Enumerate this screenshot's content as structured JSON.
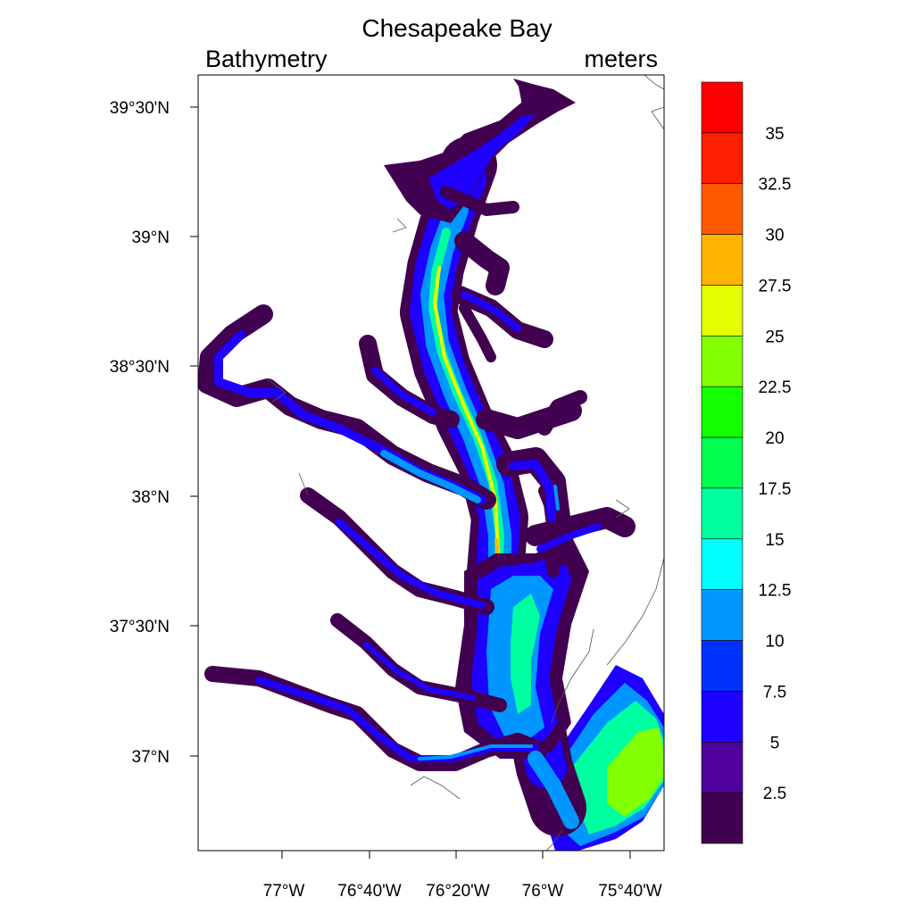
{
  "map": {
    "title": "Chesapeake Bay",
    "left_subtitle": "Bathymetry",
    "right_subtitle": "meters",
    "lat_labels": [
      "39°30'N",
      "39°N",
      "38°30'N",
      "38°N",
      "37°30'N",
      "37°N"
    ],
    "lon_labels": [
      "77°W",
      "76°40'W",
      "76°20'W",
      "76°W",
      "75°40'W"
    ],
    "colorbar": {
      "labels": [
        "35",
        "32.5",
        "30",
        "27.5",
        "25",
        "22.5",
        "20",
        "17.5",
        "15",
        "12.5",
        "10",
        "7.5",
        "5",
        "2.5"
      ],
      "colors": [
        "#ff0000",
        "#ff1e00",
        "#ff5a00",
        "#ffb400",
        "#e6ff00",
        "#82ff00",
        "#14ff00",
        "#00ff50",
        "#00ffa0",
        "#00ffff",
        "#0096ff",
        "#0032ff",
        "#1e00ff",
        "#50009b",
        "#410050"
      ]
    },
    "water_colors": {
      "shallow": "#410050",
      "depth_2_5": "#50009b",
      "depth_5": "#1e00ff",
      "depth_7_5": "#0032ff",
      "depth_10": "#0096ff",
      "depth_12_5": "#00ffff",
      "depth_15": "#00ffa0",
      "depth_20": "#14ff00",
      "depth_25": "#82ff00",
      "depth_27_5": "#e6ff00",
      "depth_30": "#ffb400",
      "depth_32_5": "#ff1e00"
    }
  }
}
